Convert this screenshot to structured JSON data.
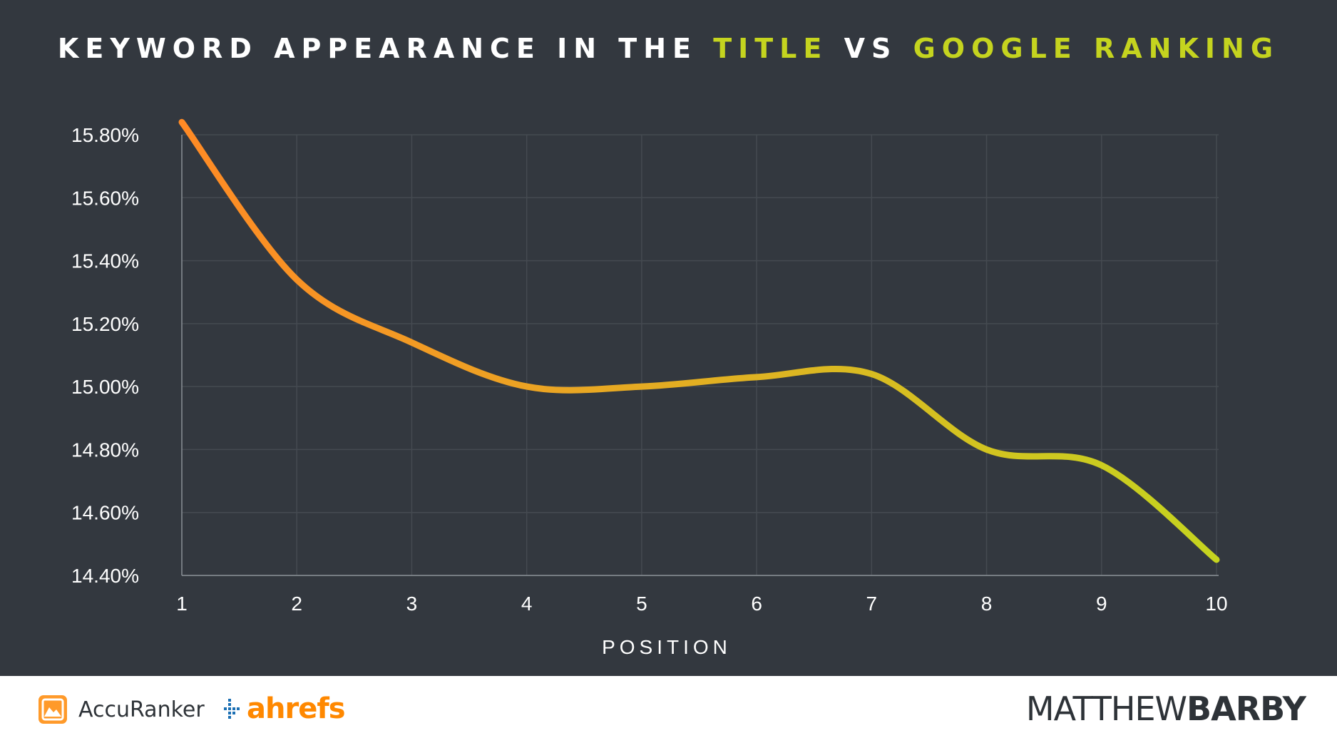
{
  "title": {
    "part1": "KEYWORD APPEARANCE IN THE ",
    "highlight1": "TITLE",
    "part2": " VS ",
    "highlight2": "GOOGLE RANKING"
  },
  "colors": {
    "background": "#33383f",
    "highlight": "#c5d41f",
    "line_start": "#ff8a25",
    "line_end": "#c5d41f",
    "grid": "#454a51",
    "axis_text": "#ffffff"
  },
  "chart_data": {
    "type": "line",
    "title": "KEYWORD APPEARANCE IN THE TITLE VS GOOGLE RANKING",
    "xlabel": "POSITION",
    "ylabel": "",
    "x": [
      1,
      2,
      3,
      4,
      5,
      6,
      7,
      8,
      9,
      10
    ],
    "series": [
      {
        "values": [
          15.84,
          15.34,
          15.14,
          15.0,
          15.0,
          15.03,
          15.04,
          14.8,
          14.75,
          14.45
        ]
      }
    ],
    "xlim": [
      1,
      10
    ],
    "ylim": [
      14.4,
      15.8
    ],
    "yticks": [
      "14.40%",
      "14.60%",
      "14.80%",
      "15.00%",
      "15.20%",
      "15.40%",
      "15.60%",
      "15.80%"
    ],
    "xticks": [
      "1",
      "2",
      "3",
      "4",
      "5",
      "6",
      "7",
      "8",
      "9",
      "10"
    ],
    "grid": true,
    "legend": "none"
  },
  "footer": {
    "accuranker": "AccuRanker",
    "ahrefs": "ahrefs",
    "author_light": "MATTHEW",
    "author_bold": "BARBY"
  }
}
